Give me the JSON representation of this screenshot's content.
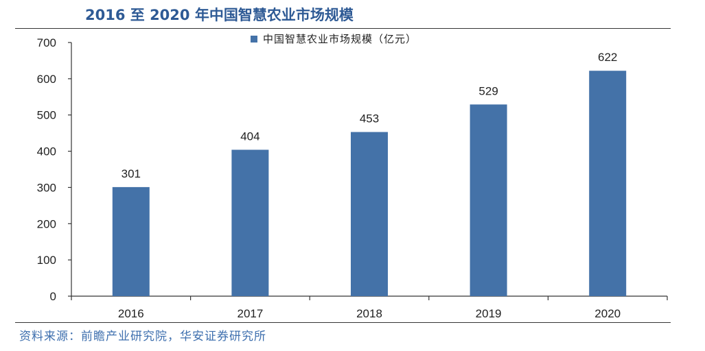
{
  "header": {
    "title": "2016 至 2020 年中国智慧农业市场规模"
  },
  "footer": {
    "source": "资料来源：前瞻产业研究院，华安证券研究所"
  },
  "colors": {
    "bar": "#4472a8",
    "title": "#2e5a95",
    "source": "#3e6fae",
    "axis": "#333333"
  },
  "chart_data": {
    "type": "bar",
    "title": "",
    "xlabel": "",
    "ylabel": "",
    "categories": [
      "2016",
      "2017",
      "2018",
      "2019",
      "2020"
    ],
    "series": [
      {
        "name": "中国智慧农业市场规模（亿元）",
        "values": [
          301,
          404,
          453,
          529,
          622
        ]
      }
    ],
    "ylim": [
      0,
      700
    ],
    "yticks": [
      0,
      100,
      200,
      300,
      400,
      500,
      600,
      700
    ],
    "grid": false,
    "legend_position": "top-center",
    "data_labels": true
  }
}
